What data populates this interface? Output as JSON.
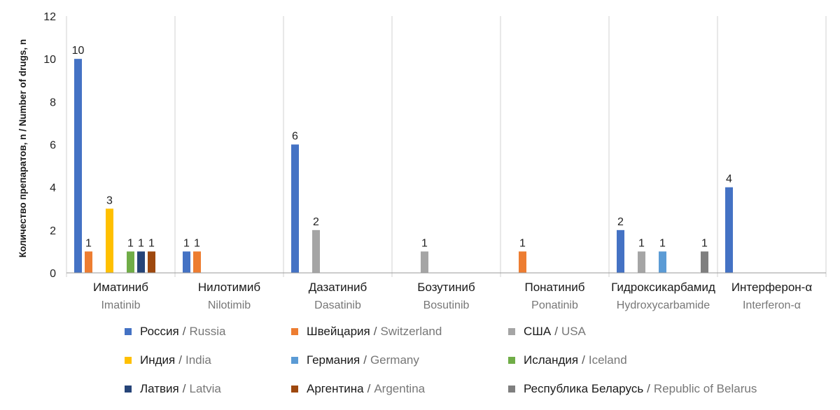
{
  "chart_data": {
    "type": "bar",
    "ylabel": "Количество препаратов, n / Number of drugs, n",
    "ylim": [
      0,
      12
    ],
    "yticks": [
      0,
      2,
      4,
      6,
      8,
      10,
      12
    ],
    "grid": "vertical separators between categories",
    "legend_position": "bottom",
    "categories": [
      {
        "ru": "Иматиниб",
        "en": "Imatinib"
      },
      {
        "ru": "Нилотимиб",
        "en": "Nilotimib"
      },
      {
        "ru": "Дазатиниб",
        "en": "Dasatinib"
      },
      {
        "ru": "Бозутиниб",
        "en": "Bosutinib"
      },
      {
        "ru": "Понатиниб",
        "en": "Ponatinib"
      },
      {
        "ru": "Гидроксикарбамид",
        "en": "Hydroxycarbamide"
      },
      {
        "ru": "Интерферон-α",
        "en": "Interferon-α"
      }
    ],
    "series": [
      {
        "name_ru": "Россия",
        "name_en": "Russia",
        "color": "#4472C4",
        "values": [
          10,
          1,
          6,
          null,
          null,
          2,
          4
        ]
      },
      {
        "name_ru": "Швейцария",
        "name_en": "Switzerland",
        "color": "#ED7D31",
        "values": [
          1,
          1,
          null,
          null,
          1,
          null,
          null
        ]
      },
      {
        "name_ru": "США",
        "name_en": "USA",
        "color": "#A5A5A5",
        "values": [
          null,
          null,
          2,
          1,
          null,
          1,
          null
        ]
      },
      {
        "name_ru": "Индия",
        "name_en": "India",
        "color": "#FFC000",
        "values": [
          3,
          null,
          null,
          null,
          null,
          null,
          null
        ]
      },
      {
        "name_ru": "Германия",
        "name_en": "Germany",
        "color": "#5B9BD5",
        "values": [
          null,
          null,
          null,
          null,
          null,
          1,
          null
        ]
      },
      {
        "name_ru": "Исландия",
        "name_en": "Iceland",
        "color": "#70AD47",
        "values": [
          1,
          null,
          null,
          null,
          null,
          null,
          null
        ]
      },
      {
        "name_ru": "Латвия",
        "name_en": "Latvia",
        "color": "#264478",
        "values": [
          1,
          null,
          null,
          null,
          null,
          null,
          null
        ]
      },
      {
        "name_ru": "Аргентина",
        "name_en": "Argentina",
        "color": "#9E480E",
        "values": [
          1,
          null,
          null,
          null,
          null,
          null,
          null
        ]
      },
      {
        "name_ru": "Республика Беларусь",
        "name_en": "Republic of Belarus",
        "color": "#7F7F7F",
        "values": [
          null,
          null,
          null,
          null,
          null,
          1,
          null
        ]
      }
    ]
  }
}
